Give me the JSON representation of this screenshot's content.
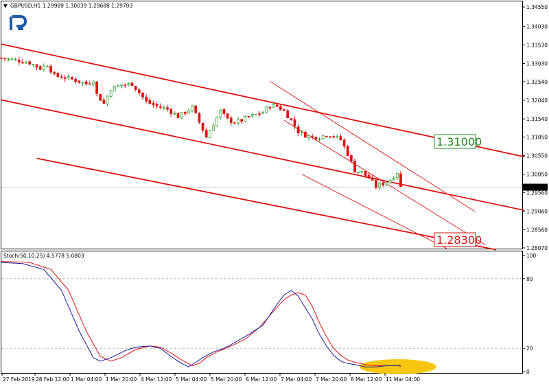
{
  "header": {
    "dropdown_glyph": "▼",
    "symbol": "GBPUSD,H1",
    "ohlc": "1.29989 1.30039 1.29688 1.29703"
  },
  "logo": {
    "name": "r-logo-icon",
    "color": "#1e5aa8"
  },
  "indicator": {
    "label": "Stoch(50,10,25) 4.5778 5.0803"
  },
  "price_axis": {
    "ticks": [
      "1.34550",
      "1.34030",
      "1.33530",
      "1.33030",
      "1.32540",
      "1.32040",
      "1.31540",
      "1.31050",
      "1.30550",
      "1.30050",
      "1.29560",
      "1.29060",
      "1.28560",
      "1.28070"
    ],
    "current": "1.29703"
  },
  "stoch_axis": {
    "ticks": [
      "100",
      "80",
      "20",
      "0"
    ]
  },
  "time_axis": {
    "labels": [
      "27 Feb 2019",
      "28 Feb 12:00",
      "1 Mar 04:00",
      "1 Mar 20:00",
      "4 Mar 12:00",
      "5 Mar 04:00",
      "5 Mar 20:00",
      "6 Mar 12:00",
      "7 Mar 04:00",
      "7 Mar 20:00",
      "8 Mar 12:00",
      "11 Mar 04:00"
    ]
  },
  "annotations": {
    "resistance": {
      "text": "1.31000",
      "color": "#1f8a1f"
    },
    "support": {
      "text": "1.28300",
      "color": "#e01010"
    }
  },
  "colors": {
    "bull": "#1e9e1e",
    "bear": "#e01010",
    "channel": "#e01010",
    "k_line": "#1a1aa0",
    "d_line": "#e01010",
    "highlight": "#f5c400"
  },
  "chart_data": {
    "type": "candlestick",
    "symbol": "GBPUSD",
    "timeframe": "H1",
    "ylim": [
      1.2805,
      1.347
    ],
    "price_path": [
      [
        0,
        1.3318
      ],
      [
        4,
        1.3312
      ],
      [
        8,
        1.3305
      ],
      [
        11,
        1.329
      ],
      [
        13,
        1.33
      ],
      [
        15,
        1.327
      ],
      [
        18,
        1.3265
      ],
      [
        21,
        1.3258
      ],
      [
        24,
        1.3248
      ],
      [
        26,
        1.3258
      ],
      [
        27,
        1.322
      ],
      [
        29,
        1.3195
      ],
      [
        31,
        1.3235
      ],
      [
        34,
        1.3245
      ],
      [
        37,
        1.3248
      ],
      [
        39,
        1.3225
      ],
      [
        41,
        1.32
      ],
      [
        44,
        1.3188
      ],
      [
        47,
        1.318
      ],
      [
        50,
        1.316
      ],
      [
        52,
        1.3172
      ],
      [
        54,
        1.3185
      ],
      [
        56,
        1.3145
      ],
      [
        58,
        1.3105
      ],
      [
        60,
        1.314
      ],
      [
        62,
        1.3175
      ],
      [
        64,
        1.3152
      ],
      [
        66,
        1.3145
      ],
      [
        68,
        1.315
      ],
      [
        70,
        1.316
      ],
      [
        72,
        1.3165
      ],
      [
        74,
        1.3172
      ],
      [
        76,
        1.319
      ],
      [
        78,
        1.3188
      ],
      [
        80,
        1.3175
      ],
      [
        82,
        1.315
      ],
      [
        84,
        1.312
      ],
      [
        86,
        1.311
      ],
      [
        88,
        1.3105
      ],
      [
        90,
        1.3105
      ],
      [
        92,
        1.3112
      ],
      [
        94,
        1.3108
      ],
      [
        96,
        1.3098
      ],
      [
        98,
        1.306
      ],
      [
        100,
        1.3015
      ],
      [
        102,
        1.301
      ],
      [
        104,
        1.2995
      ],
      [
        106,
        1.2972
      ],
      [
        108,
        1.298
      ],
      [
        110,
        1.299
      ],
      [
        112,
        1.301
      ],
      [
        113,
        1.297
      ]
    ],
    "stoch_k": [
      [
        0,
        94
      ],
      [
        6,
        93
      ],
      [
        12,
        88
      ],
      [
        17,
        70
      ],
      [
        22,
        35
      ],
      [
        26,
        12
      ],
      [
        28,
        9
      ],
      [
        31,
        12
      ],
      [
        35,
        18
      ],
      [
        38,
        21
      ],
      [
        42,
        22
      ],
      [
        45,
        20
      ],
      [
        48,
        13
      ],
      [
        51,
        7
      ],
      [
        53,
        4
      ],
      [
        55,
        8
      ],
      [
        57,
        12
      ],
      [
        60,
        17
      ],
      [
        63,
        20
      ],
      [
        66,
        25
      ],
      [
        70,
        32
      ],
      [
        74,
        40
      ],
      [
        78,
        58
      ],
      [
        80,
        66
      ],
      [
        82,
        70
      ],
      [
        84,
        65
      ],
      [
        86,
        55
      ],
      [
        88,
        45
      ],
      [
        90,
        32
      ],
      [
        92,
        22
      ],
      [
        94,
        14
      ],
      [
        96,
        9
      ],
      [
        98,
        7
      ],
      [
        100,
        6
      ],
      [
        103,
        4
      ],
      [
        106,
        4
      ],
      [
        109,
        5
      ],
      [
        112,
        5
      ],
      [
        113,
        4.58
      ]
    ],
    "stoch_d": [
      [
        0,
        95
      ],
      [
        8,
        94
      ],
      [
        14,
        88
      ],
      [
        19,
        70
      ],
      [
        24,
        35
      ],
      [
        28,
        13
      ],
      [
        31,
        9
      ],
      [
        34,
        12
      ],
      [
        38,
        19
      ],
      [
        42,
        22
      ],
      [
        45,
        21
      ],
      [
        48,
        16
      ],
      [
        51,
        10
      ],
      [
        54,
        5
      ],
      [
        56,
        7
      ],
      [
        58,
        12
      ],
      [
        61,
        17
      ],
      [
        65,
        22
      ],
      [
        69,
        28
      ],
      [
        73,
        38
      ],
      [
        77,
        52
      ],
      [
        80,
        62
      ],
      [
        82,
        66
      ],
      [
        84,
        68
      ],
      [
        86,
        66
      ],
      [
        88,
        56
      ],
      [
        90,
        42
      ],
      [
        92,
        30
      ],
      [
        94,
        20
      ],
      [
        96,
        14
      ],
      [
        98,
        10
      ],
      [
        100,
        8
      ],
      [
        103,
        6
      ],
      [
        106,
        5
      ],
      [
        109,
        5
      ],
      [
        112,
        5
      ],
      [
        113,
        5.08
      ]
    ],
    "stoch_levels": [
      80,
      20
    ],
    "channels": [
      {
        "name": "main-upper",
        "from": [
          0,
          1.3355
        ],
        "to": [
          148,
          1.3052
        ]
      },
      {
        "name": "main-middle",
        "from": [
          0,
          1.3205
        ],
        "to": [
          148,
          1.2908
        ]
      },
      {
        "name": "main-lower",
        "from": [
          10,
          1.3048
        ],
        "to": [
          140,
          1.2802
        ]
      },
      {
        "name": "local-upper",
        "from": [
          76,
          1.3255
        ],
        "to": [
          134,
          1.2905
        ]
      },
      {
        "name": "local-middle",
        "from": [
          80,
          1.315
        ],
        "to": [
          137,
          1.2815
        ]
      },
      {
        "name": "local-lower",
        "from": [
          85,
          1.3005
        ],
        "to": [
          126,
          1.2805
        ]
      }
    ],
    "targets": [
      1.31,
      1.283
    ]
  }
}
